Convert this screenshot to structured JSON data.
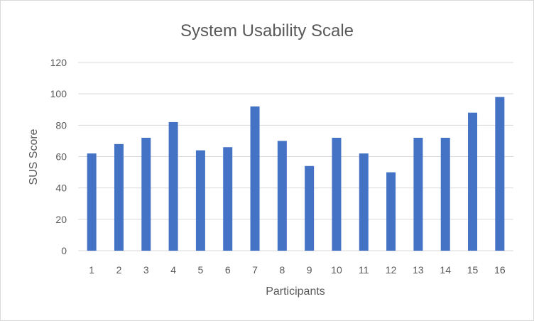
{
  "chart_data": {
    "type": "bar",
    "title": "System Usability Scale",
    "xlabel": "Participants",
    "ylabel": "SUS Score",
    "categories": [
      "1",
      "2",
      "3",
      "4",
      "5",
      "6",
      "7",
      "8",
      "9",
      "10",
      "11",
      "12",
      "13",
      "14",
      "15",
      "16"
    ],
    "series": [
      {
        "values": [
          62,
          68,
          72,
          82,
          64,
          66,
          92,
          70,
          54,
          72,
          62,
          50,
          72,
          72,
          88,
          98
        ]
      }
    ],
    "ylim": [
      0,
      120
    ],
    "yticks": [
      0,
      20,
      40,
      60,
      80,
      100,
      120
    ],
    "grid": "horizontal",
    "legend": "none",
    "colors": {
      "bar": "#4472c4",
      "grid": "#d9d9d9",
      "text": "#595959"
    }
  }
}
